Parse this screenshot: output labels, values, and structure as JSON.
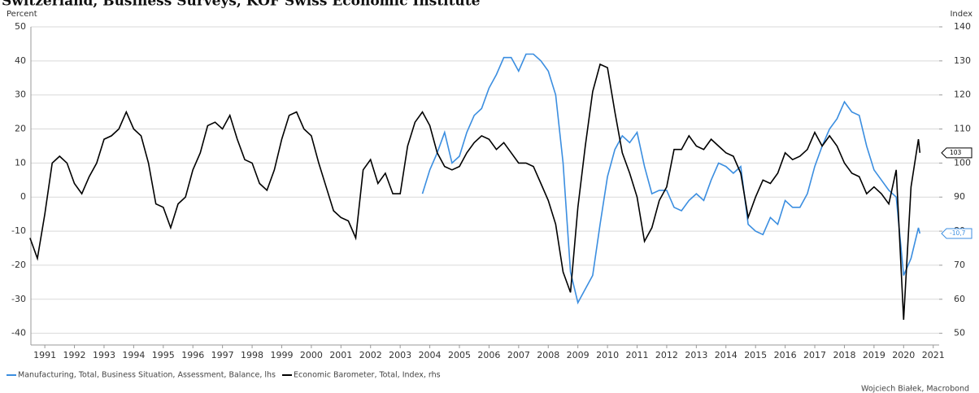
{
  "chart_data": {
    "type": "line",
    "title": "Switzerland, Business Surveys, KOF Swiss Economic Institute",
    "y_label": "Percent",
    "y2_label": "Index",
    "credit": "Wojciech Białek, Macrobond",
    "x": [
      1990.5,
      1990.75,
      1991,
      1991.25,
      1991.5,
      1991.75,
      1992,
      1992.25,
      1992.5,
      1992.75,
      1993,
      1993.25,
      1993.5,
      1993.75,
      1994,
      1994.25,
      1994.5,
      1994.75,
      1995,
      1995.25,
      1995.5,
      1995.75,
      1996,
      1996.25,
      1996.5,
      1996.75,
      1997,
      1997.25,
      1997.5,
      1997.75,
      1998,
      1998.25,
      1998.5,
      1998.75,
      1999,
      1999.25,
      1999.5,
      1999.75,
      2000,
      2000.25,
      2000.5,
      2000.75,
      2001,
      2001.25,
      2001.5,
      2001.75,
      2002,
      2002.25,
      2002.5,
      2002.75,
      2003,
      2003.25,
      2003.5,
      2003.75,
      2004,
      2004.25,
      2004.5,
      2004.75,
      2005,
      2005.25,
      2005.5,
      2005.75,
      2006,
      2006.25,
      2006.5,
      2006.75,
      2007,
      2007.25,
      2007.5,
      2007.75,
      2008,
      2008.25,
      2008.5,
      2008.75,
      2009,
      2009.25,
      2009.5,
      2009.75,
      2010,
      2010.25,
      2010.5,
      2010.75,
      2011,
      2011.25,
      2011.5,
      2011.75,
      2012,
      2012.25,
      2012.5,
      2012.75,
      2013,
      2013.25,
      2013.5,
      2013.75,
      2014,
      2014.25,
      2014.5,
      2014.75,
      2015,
      2015.25,
      2015.5,
      2015.75,
      2016,
      2016.25,
      2016.5,
      2016.75,
      2017,
      2017.25,
      2017.5,
      2017.75,
      2018,
      2018.25,
      2018.5,
      2018.75,
      2019,
      2019.25,
      2019.5,
      2019.75,
      2020,
      2020.25,
      2020.5,
      2020.55
    ],
    "xlim": [
      1990.53,
      2021.2
    ],
    "xticks": [
      1991,
      1992,
      1993,
      1994,
      1995,
      1996,
      1997,
      1998,
      1999,
      2000,
      2001,
      2002,
      2003,
      2004,
      2005,
      2006,
      2007,
      2008,
      2009,
      2010,
      2011,
      2012,
      2013,
      2014,
      2015,
      2016,
      2017,
      2018,
      2019,
      2020,
      2021
    ],
    "ylim": [
      -42,
      50
    ],
    "yticks": [
      -40,
      -30,
      -20,
      -10,
      0,
      10,
      20,
      30,
      40,
      50
    ],
    "y2lim": [
      48,
      140
    ],
    "y2ticks": [
      50,
      60,
      70,
      80,
      90,
      100,
      110,
      120,
      130,
      140
    ],
    "grid": true,
    "series": [
      {
        "name": "Manufacturing, Total, Business Situation, Assessment, Balance, lhs",
        "color": "#3b8ee0",
        "axis": "y",
        "end_label": "-10,7",
        "values": [
          null,
          null,
          null,
          null,
          null,
          null,
          null,
          null,
          null,
          null,
          null,
          null,
          null,
          null,
          null,
          null,
          null,
          null,
          null,
          null,
          null,
          null,
          null,
          null,
          null,
          null,
          null,
          null,
          null,
          null,
          null,
          null,
          null,
          null,
          null,
          null,
          null,
          null,
          null,
          null,
          null,
          null,
          null,
          null,
          null,
          null,
          null,
          null,
          null,
          null,
          null,
          null,
          null,
          1,
          8,
          13,
          19,
          10,
          12,
          19,
          24,
          26,
          32,
          36,
          41,
          41,
          37,
          42,
          42,
          40,
          37,
          30,
          10,
          -22,
          -31,
          -27,
          -23,
          -8,
          6,
          14,
          18,
          16,
          19,
          9,
          1,
          2,
          2,
          -3,
          -4,
          -1,
          1,
          -1,
          5,
          10,
          9,
          7,
          9,
          -8,
          -10,
          -11,
          -6,
          -8,
          -1,
          -3,
          -3,
          1,
          9,
          15,
          20,
          23,
          28,
          25,
          24,
          15,
          8,
          5,
          2,
          0,
          -23,
          -18,
          -9,
          -10.7
        ]
      },
      {
        "name": "Economic Barometer, Total, Index, rhs",
        "color": "#000000",
        "axis": "y2",
        "end_label": "103",
        "values": [
          78,
          72,
          85,
          100,
          102,
          100,
          94,
          91,
          96,
          100,
          107,
          108,
          110,
          115,
          110,
          108,
          100,
          88,
          87,
          81,
          88,
          90,
          98,
          103,
          111,
          112,
          110,
          114,
          107,
          101,
          100,
          94,
          92,
          98,
          107,
          114,
          115,
          110,
          108,
          100,
          93,
          86,
          84,
          83,
          78,
          98,
          101,
          94,
          97,
          91,
          91,
          105,
          112,
          115,
          111,
          103,
          99,
          98,
          99,
          103,
          106,
          108,
          107,
          104,
          106,
          103,
          100,
          100,
          99,
          94,
          89,
          82,
          68,
          62,
          87,
          105,
          121,
          129,
          128,
          115,
          103,
          97,
          90,
          77,
          81,
          89,
          93,
          104,
          104,
          108,
          105,
          104,
          107,
          105,
          103,
          102,
          97,
          84,
          90,
          95,
          94,
          97,
          103,
          101,
          102,
          104,
          109,
          105,
          108,
          105,
          100,
          97,
          96,
          91,
          93,
          91,
          88,
          98,
          54,
          93,
          107,
          103
        ]
      }
    ]
  }
}
